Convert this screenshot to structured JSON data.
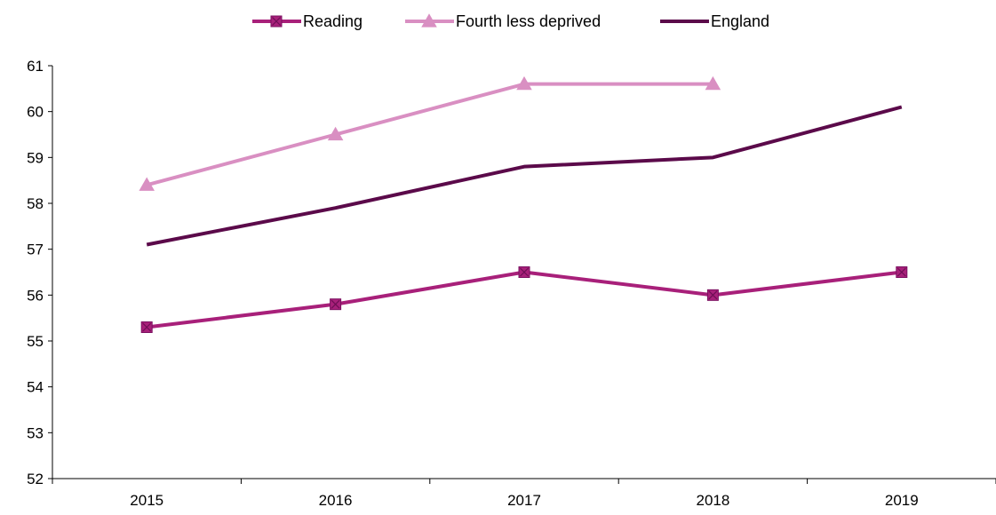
{
  "chart_data": {
    "type": "line",
    "title": "",
    "xlabel": "",
    "ylabel": "",
    "categories": [
      "2015",
      "2016",
      "2017",
      "2018",
      "2019"
    ],
    "ylim": [
      52,
      61
    ],
    "yticks": [
      52,
      53,
      54,
      55,
      56,
      57,
      58,
      59,
      60,
      61
    ],
    "grid": false,
    "legend_position": "top-center",
    "series": [
      {
        "name": "Reading",
        "values": [
          55.3,
          55.8,
          56.5,
          56.0,
          56.5
        ],
        "color": "#A8207A",
        "marker": "square-x"
      },
      {
        "name": "Fourth less deprived",
        "values": [
          58.4,
          59.5,
          60.6,
          60.6,
          null
        ],
        "color": "#D98FC2",
        "marker": "triangle"
      },
      {
        "name": "England",
        "values": [
          57.1,
          57.9,
          58.8,
          59.0,
          60.1
        ],
        "color": "#5B0A4A",
        "marker": "none"
      }
    ]
  }
}
